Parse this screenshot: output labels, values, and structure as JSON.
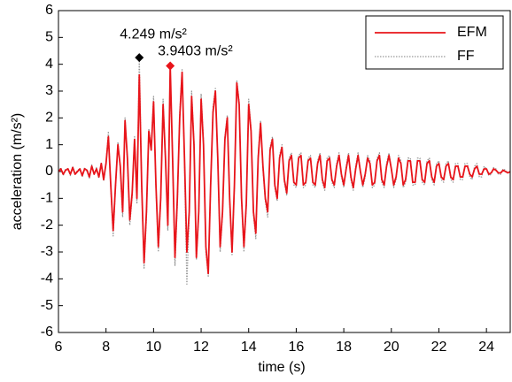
{
  "chart_data": {
    "type": "line",
    "xlabel": "time (s)",
    "ylabel": "acceleration (m/s²)",
    "xlim": [
      6,
      25
    ],
    "ylim": [
      -6,
      6
    ],
    "xticks": [
      6,
      8,
      10,
      12,
      14,
      16,
      18,
      20,
      22,
      24
    ],
    "yticks": [
      -6,
      -5,
      -4,
      -3,
      -2,
      -1,
      0,
      1,
      2,
      3,
      4,
      5,
      6
    ],
    "legend": "top-right",
    "x": [
      6.0,
      6.1,
      6.2,
      6.3,
      6.4,
      6.5,
      6.6,
      6.7,
      6.8,
      6.9,
      7.0,
      7.1,
      7.2,
      7.3,
      7.4,
      7.5,
      7.6,
      7.7,
      7.8,
      7.9,
      8.0,
      8.1,
      8.2,
      8.3,
      8.4,
      8.5,
      8.6,
      8.7,
      8.8,
      8.9,
      9.0,
      9.1,
      9.2,
      9.3,
      9.4,
      9.5,
      9.6,
      9.7,
      9.8,
      9.9,
      10.0,
      10.1,
      10.2,
      10.3,
      10.4,
      10.5,
      10.6,
      10.7,
      10.8,
      10.9,
      11.0,
      11.1,
      11.2,
      11.3,
      11.4,
      11.5,
      11.6,
      11.7,
      11.8,
      11.9,
      12.0,
      12.1,
      12.2,
      12.3,
      12.4,
      12.5,
      12.6,
      12.7,
      12.8,
      12.9,
      13.0,
      13.1,
      13.2,
      13.3,
      13.4,
      13.5,
      13.6,
      13.7,
      13.8,
      13.9,
      14.0,
      14.1,
      14.2,
      14.3,
      14.4,
      14.5,
      14.6,
      14.7,
      14.8,
      14.9,
      15.0,
      15.1,
      15.2,
      15.3,
      15.4,
      15.5,
      15.6,
      15.7,
      15.8,
      15.9,
      16.0,
      16.1,
      16.2,
      16.3,
      16.4,
      16.5,
      16.6,
      16.7,
      16.8,
      16.9,
      17.0,
      17.1,
      17.2,
      17.3,
      17.4,
      17.5,
      17.6,
      17.7,
      17.8,
      17.9,
      18.0,
      18.1,
      18.2,
      18.3,
      18.4,
      18.5,
      18.6,
      18.7,
      18.8,
      18.9,
      19.0,
      19.1,
      19.2,
      19.3,
      19.4,
      19.5,
      19.6,
      19.7,
      19.8,
      19.9,
      20.0,
      20.1,
      20.2,
      20.3,
      20.4,
      20.5,
      20.6,
      20.7,
      20.8,
      20.9,
      21.0,
      21.1,
      21.2,
      21.3,
      21.4,
      21.5,
      21.6,
      21.7,
      21.8,
      21.9,
      22.0,
      22.1,
      22.2,
      22.3,
      22.4,
      22.5,
      22.6,
      22.7,
      22.8,
      22.9,
      23.0,
      23.1,
      23.2,
      23.3,
      23.4,
      23.5,
      23.6,
      23.7,
      23.8,
      23.9,
      24.0,
      24.1,
      24.2,
      24.3,
      24.4,
      24.5,
      24.6,
      24.7,
      24.8,
      24.9,
      25.0
    ],
    "series": [
      {
        "name": "FF",
        "color": "#999999",
        "dash": "dotted",
        "values": [
          0,
          0.15,
          -0.15,
          0.1,
          0.1,
          -0.15,
          0.2,
          -0.1,
          0.05,
          0.1,
          -0.2,
          0.15,
          0.0,
          -0.25,
          0.25,
          -0.1,
          0.15,
          -0.25,
          0.35,
          -0.35,
          0.3,
          1.5,
          -0.6,
          -2.4,
          -0.6,
          1.1,
          0.1,
          -1.7,
          2.0,
          0.4,
          -2.0,
          -0.9,
          1.3,
          -1.2,
          4.249,
          -0.6,
          -3.6,
          -1.7,
          1.6,
          0.9,
          2.8,
          -0.6,
          -3.0,
          -1.1,
          2.7,
          0.5,
          -2.2,
          3.7,
          0.6,
          -3.5,
          -1.2,
          2.2,
          3.8,
          0.4,
          -4.2,
          -1.6,
          3.0,
          1.1,
          -3.3,
          -1.6,
          2.9,
          1.1,
          -3.0,
          -3.9,
          -0.6,
          2.4,
          3.1,
          0.4,
          -3.0,
          -1.6,
          1.3,
          2.1,
          -1.1,
          -3.1,
          -0.6,
          3.4,
          2.6,
          -1.1,
          -3.0,
          -1.3,
          2.7,
          1.6,
          -1.6,
          -2.5,
          0.6,
          1.9,
          0.1,
          -1.1,
          -1.7,
          0.9,
          1.3,
          -0.6,
          -1.1,
          0.6,
          1.0,
          -0.4,
          -0.9,
          0.5,
          0.7,
          -0.5,
          -0.6,
          0.6,
          0.7,
          -0.6,
          -0.5,
          0.5,
          0.6,
          -0.5,
          -0.6,
          0.4,
          0.7,
          -0.4,
          -0.7,
          0.5,
          0.6,
          -0.4,
          -0.6,
          0.3,
          0.7,
          -0.2,
          -0.6,
          0.2,
          0.7,
          -0.3,
          -0.7,
          0.2,
          0.7,
          0.0,
          -0.6,
          -0.2,
          0.6,
          0.4,
          -0.6,
          -0.5,
          0.5,
          0.7,
          -0.4,
          -0.6,
          0.3,
          0.7,
          0.1,
          -0.6,
          -0.3,
          0.6,
          0.4,
          -0.6,
          -0.4,
          0.5,
          0.5,
          -0.5,
          -0.5,
          0.5,
          0.5,
          -0.4,
          -0.5,
          0.4,
          0.5,
          -0.3,
          -0.5,
          0.3,
          0.4,
          -0.3,
          -0.4,
          0.3,
          0.4,
          -0.3,
          -0.4,
          0.3,
          0.3,
          -0.3,
          -0.3,
          0.3,
          0.3,
          -0.2,
          -0.3,
          0.2,
          0.3,
          -0.2,
          -0.2,
          0.2,
          0.1,
          -0.15,
          -0.1,
          0.15,
          0.1,
          -0.1,
          -0.1,
          0.1,
          0.05,
          -0.05,
          0
        ]
      },
      {
        "name": "EFM",
        "color": "#e8141a",
        "dash": "solid",
        "values": [
          0,
          0.1,
          -0.1,
          0.05,
          0.1,
          -0.1,
          0.15,
          -0.1,
          0,
          0.1,
          -0.15,
          0.1,
          0.05,
          -0.2,
          0.2,
          -0.1,
          0.1,
          -0.2,
          0.3,
          -0.3,
          0.3,
          1.3,
          -0.5,
          -2.2,
          -0.5,
          1.0,
          0.2,
          -1.5,
          1.9,
          0.5,
          -1.8,
          -0.8,
          1.2,
          -1.0,
          3.6,
          -0.5,
          -3.4,
          -1.5,
          1.5,
          0.8,
          2.6,
          -0.5,
          -2.8,
          -1.0,
          2.5,
          0.5,
          -2.0,
          3.9403,
          0.5,
          -3.2,
          -1.0,
          2.0,
          3.7,
          0.5,
          -3.0,
          -1.5,
          2.8,
          1.0,
          -3.2,
          -1.5,
          2.7,
          1.0,
          -2.8,
          -3.8,
          -0.5,
          2.2,
          3.0,
          0.5,
          -2.8,
          -1.5,
          1.2,
          2.0,
          -1.0,
          -3.0,
          -0.5,
          3.3,
          2.5,
          -1.0,
          -2.8,
          -1.2,
          2.5,
          1.5,
          -1.5,
          -2.3,
          0.5,
          1.8,
          0.2,
          -1.0,
          -1.5,
          0.8,
          1.2,
          -0.5,
          -1.0,
          0.5,
          0.9,
          -0.3,
          -0.8,
          0.4,
          0.6,
          -0.4,
          -0.5,
          0.5,
          0.6,
          -0.5,
          -0.4,
          0.4,
          0.5,
          -0.4,
          -0.5,
          0.3,
          0.6,
          -0.3,
          -0.6,
          0.4,
          0.5,
          -0.3,
          -0.5,
          0.2,
          0.6,
          -0.1,
          -0.5,
          0.1,
          0.6,
          -0.2,
          -0.6,
          0.1,
          0.6,
          0.0,
          -0.5,
          -0.1,
          0.5,
          0.3,
          -0.5,
          -0.4,
          0.4,
          0.6,
          -0.3,
          -0.5,
          0.2,
          0.6,
          0.1,
          -0.5,
          -0.2,
          0.5,
          0.3,
          -0.5,
          -0.3,
          0.4,
          0.4,
          -0.4,
          -0.4,
          0.4,
          0.4,
          -0.3,
          -0.4,
          0.3,
          0.4,
          -0.2,
          -0.4,
          0.2,
          0.3,
          -0.2,
          -0.3,
          0.2,
          0.3,
          -0.2,
          -0.3,
          0.2,
          0.2,
          -0.2,
          -0.2,
          0.2,
          0.2,
          -0.1,
          -0.2,
          0.1,
          0.2,
          -0.1,
          -0.1,
          0.1,
          0.1,
          -0.1,
          -0.05,
          0.1,
          0.05,
          -0.05,
          -0.05,
          0.05,
          0,
          -0.05,
          0
        ]
      }
    ],
    "annotations": [
      {
        "text": "4.249 m/s²",
        "x": 9.4,
        "y": 4.249,
        "color": "#000000"
      },
      {
        "text": "3.9403 m/s²",
        "x": 10.7,
        "y": 3.9403,
        "color": "#e8141a"
      }
    ]
  }
}
